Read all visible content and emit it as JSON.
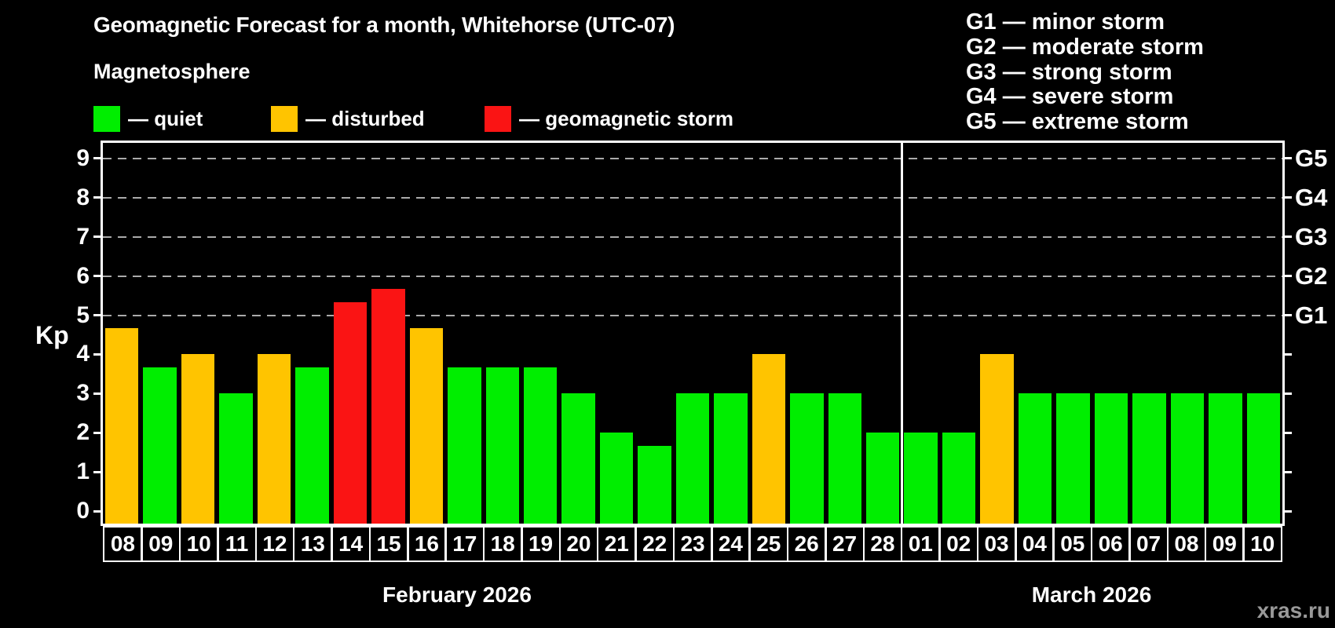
{
  "title": "Geomagnetic Forecast for a month, Whitehorse (UTC-07)",
  "subtitle": "Magnetosphere",
  "legend": {
    "items": [
      {
        "key": "quiet",
        "label": "— quiet"
      },
      {
        "key": "disturbed",
        "label": "— disturbed"
      },
      {
        "key": "storm",
        "label": "— geomagnetic storm"
      }
    ]
  },
  "g_legend": [
    "G1 — minor storm",
    "G2 — moderate storm",
    "G3 — strong storm",
    "G4 — severe storm",
    "G5 — extreme storm"
  ],
  "colors": {
    "quiet": "#00ee00",
    "disturbed": "#ffc400",
    "storm": "#fa1414",
    "background": "#000000",
    "text": "#ffffff",
    "grid": "#aaaaaa",
    "axis": "#ffffff",
    "watermark": "#999999"
  },
  "y_axis": {
    "label": "Kp",
    "ticks": [
      0,
      1,
      2,
      3,
      4,
      5,
      6,
      7,
      8,
      9
    ]
  },
  "right_axis": {
    "labels": [
      {
        "kp": 5,
        "label": "G1"
      },
      {
        "kp": 6,
        "label": "G2"
      },
      {
        "kp": 7,
        "label": "G3"
      },
      {
        "kp": 8,
        "label": "G4"
      },
      {
        "kp": 9,
        "label": "G5"
      }
    ]
  },
  "months": [
    {
      "name": "February 2026"
    },
    {
      "name": "March 2026"
    }
  ],
  "watermark": "xras.ru",
  "chart_data": {
    "type": "bar",
    "title": "Geomagnetic Forecast for a month, Whitehorse (UTC-07)",
    "ylabel": "Kp",
    "ylim": [
      0,
      9.4
    ],
    "grid_levels": [
      5,
      6,
      7,
      8,
      9
    ],
    "legend_position": "top",
    "bars": [
      {
        "month": "February 2026",
        "day": "08",
        "kp": 4.67,
        "status": "disturbed"
      },
      {
        "month": "February 2026",
        "day": "09",
        "kp": 3.67,
        "status": "quiet"
      },
      {
        "month": "February 2026",
        "day": "10",
        "kp": 4.0,
        "status": "disturbed"
      },
      {
        "month": "February 2026",
        "day": "11",
        "kp": 3.0,
        "status": "quiet"
      },
      {
        "month": "February 2026",
        "day": "12",
        "kp": 4.0,
        "status": "disturbed"
      },
      {
        "month": "February 2026",
        "day": "13",
        "kp": 3.67,
        "status": "quiet"
      },
      {
        "month": "February 2026",
        "day": "14",
        "kp": 5.33,
        "status": "storm"
      },
      {
        "month": "February 2026",
        "day": "15",
        "kp": 5.67,
        "status": "storm"
      },
      {
        "month": "February 2026",
        "day": "16",
        "kp": 4.67,
        "status": "disturbed"
      },
      {
        "month": "February 2026",
        "day": "17",
        "kp": 3.67,
        "status": "quiet"
      },
      {
        "month": "February 2026",
        "day": "18",
        "kp": 3.67,
        "status": "quiet"
      },
      {
        "month": "February 2026",
        "day": "19",
        "kp": 3.67,
        "status": "quiet"
      },
      {
        "month": "February 2026",
        "day": "20",
        "kp": 3.0,
        "status": "quiet"
      },
      {
        "month": "February 2026",
        "day": "21",
        "kp": 2.0,
        "status": "quiet"
      },
      {
        "month": "February 2026",
        "day": "22",
        "kp": 1.67,
        "status": "quiet"
      },
      {
        "month": "February 2026",
        "day": "23",
        "kp": 3.0,
        "status": "quiet"
      },
      {
        "month": "February 2026",
        "day": "24",
        "kp": 3.0,
        "status": "quiet"
      },
      {
        "month": "February 2026",
        "day": "25",
        "kp": 4.0,
        "status": "disturbed"
      },
      {
        "month": "February 2026",
        "day": "26",
        "kp": 3.0,
        "status": "quiet"
      },
      {
        "month": "February 2026",
        "day": "27",
        "kp": 3.0,
        "status": "quiet"
      },
      {
        "month": "February 2026",
        "day": "28",
        "kp": 2.0,
        "status": "quiet"
      },
      {
        "month": "March 2026",
        "day": "01",
        "kp": 2.0,
        "status": "quiet"
      },
      {
        "month": "March 2026",
        "day": "02",
        "kp": 2.0,
        "status": "quiet"
      },
      {
        "month": "March 2026",
        "day": "03",
        "kp": 4.0,
        "status": "disturbed"
      },
      {
        "month": "March 2026",
        "day": "04",
        "kp": 3.0,
        "status": "quiet"
      },
      {
        "month": "March 2026",
        "day": "05",
        "kp": 3.0,
        "status": "quiet"
      },
      {
        "month": "March 2026",
        "day": "06",
        "kp": 3.0,
        "status": "quiet"
      },
      {
        "month": "March 2026",
        "day": "07",
        "kp": 3.0,
        "status": "quiet"
      },
      {
        "month": "March 2026",
        "day": "08",
        "kp": 3.0,
        "status": "quiet"
      },
      {
        "month": "March 2026",
        "day": "09",
        "kp": 3.0,
        "status": "quiet"
      },
      {
        "month": "March 2026",
        "day": "10",
        "kp": 3.0,
        "status": "quiet"
      }
    ]
  }
}
